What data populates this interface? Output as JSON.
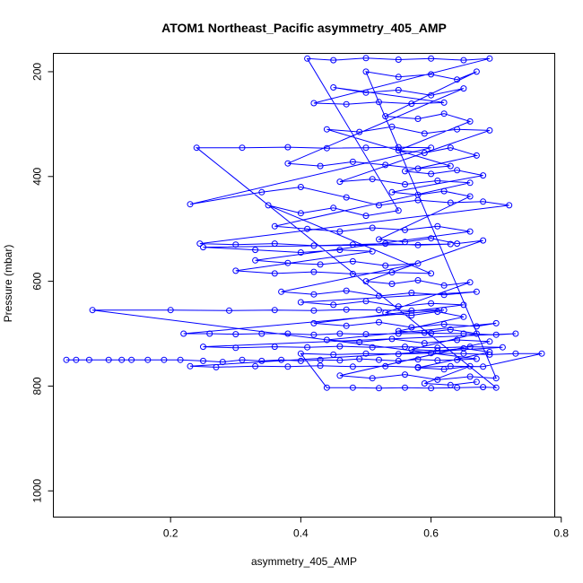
{
  "chart_data": {
    "type": "scatter",
    "title": "ATOM1 Northeast_Pacific asymmetry_405_AMP",
    "xlabel": "asymmetry_405_AMP",
    "ylabel": "Pressure (mbar)",
    "xlim": [
      0.02,
      0.79
    ],
    "ylim": [
      1050,
      165
    ],
    "xticks": [
      0.2,
      0.4,
      0.6,
      0.8
    ],
    "yticks": [
      200,
      400,
      600,
      800,
      1000
    ],
    "y_reversed": true,
    "grid": false,
    "legend": "none",
    "marker": "open-circle",
    "connected_by_lines": true,
    "color": "#0000ff",
    "series": [
      {
        "values_note": "",
        "points": [
          [
            0.04,
            750
          ],
          [
            0.055,
            750
          ],
          [
            0.075,
            750
          ],
          [
            0.105,
            750
          ],
          [
            0.125,
            750
          ],
          [
            0.14,
            750
          ],
          [
            0.165,
            750
          ],
          [
            0.19,
            750
          ],
          [
            0.215,
            750
          ],
          [
            0.25,
            752
          ],
          [
            0.28,
            754
          ],
          [
            0.31,
            750
          ],
          [
            0.34,
            752
          ],
          [
            0.37,
            750
          ],
          [
            0.4,
            752
          ],
          [
            0.43,
            750
          ],
          [
            0.46,
            751
          ],
          [
            0.49,
            748
          ],
          [
            0.52,
            750
          ],
          [
            0.55,
            752
          ],
          [
            0.58,
            749
          ],
          [
            0.61,
            751
          ],
          [
            0.64,
            750
          ],
          [
            0.67,
            748
          ],
          [
            0.08,
            655
          ],
          [
            0.2,
            655
          ],
          [
            0.29,
            656
          ],
          [
            0.36,
            655
          ],
          [
            0.42,
            656
          ],
          [
            0.47,
            654
          ],
          [
            0.52,
            655
          ],
          [
            0.57,
            656
          ],
          [
            0.62,
            655
          ],
          [
            0.22,
            700
          ],
          [
            0.26,
            700
          ],
          [
            0.3,
            701
          ],
          [
            0.34,
            700
          ],
          [
            0.38,
            700
          ],
          [
            0.42,
            702
          ],
          [
            0.46,
            700
          ],
          [
            0.5,
            701
          ],
          [
            0.55,
            700
          ],
          [
            0.6,
            699
          ],
          [
            0.65,
            700
          ],
          [
            0.7,
            702
          ],
          [
            0.73,
            700
          ],
          [
            0.25,
            725
          ],
          [
            0.3,
            727
          ],
          [
            0.36,
            725
          ],
          [
            0.41,
            726
          ],
          [
            0.46,
            724
          ],
          [
            0.51,
            726
          ],
          [
            0.56,
            725
          ],
          [
            0.61,
            727
          ],
          [
            0.66,
            725
          ],
          [
            0.71,
            726
          ],
          [
            0.23,
            762
          ],
          [
            0.27,
            764
          ],
          [
            0.33,
            762
          ],
          [
            0.38,
            763
          ],
          [
            0.43,
            761
          ],
          [
            0.48,
            763
          ],
          [
            0.53,
            762
          ],
          [
            0.58,
            764
          ],
          [
            0.63,
            762
          ],
          [
            0.68,
            763
          ],
          [
            0.77,
            738
          ],
          [
            0.73,
            738
          ],
          [
            0.69,
            740
          ],
          [
            0.65,
            738
          ],
          [
            0.6,
            737
          ],
          [
            0.55,
            739
          ],
          [
            0.5,
            738
          ],
          [
            0.45,
            740
          ],
          [
            0.4,
            738
          ],
          [
            0.44,
            803
          ],
          [
            0.48,
            803
          ],
          [
            0.52,
            804
          ],
          [
            0.56,
            803
          ],
          [
            0.6,
            804
          ],
          [
            0.64,
            803
          ],
          [
            0.68,
            802
          ],
          [
            0.7,
            803
          ],
          [
            0.24,
            345
          ],
          [
            0.31,
            345
          ],
          [
            0.38,
            344
          ],
          [
            0.44,
            346
          ],
          [
            0.5,
            345
          ],
          [
            0.55,
            344
          ],
          [
            0.6,
            345
          ],
          [
            0.23,
            453
          ],
          [
            0.34,
            430
          ],
          [
            0.4,
            420
          ],
          [
            0.47,
            440
          ],
          [
            0.52,
            455
          ],
          [
            0.58,
            445
          ],
          [
            0.63,
            450
          ],
          [
            0.68,
            448
          ],
          [
            0.72,
            455
          ],
          [
            0.245,
            528
          ],
          [
            0.3,
            530
          ],
          [
            0.36,
            528
          ],
          [
            0.42,
            532
          ],
          [
            0.48,
            530
          ],
          [
            0.53,
            528
          ],
          [
            0.58,
            531
          ],
          [
            0.63,
            529
          ],
          [
            0.25,
            535
          ],
          [
            0.33,
            540
          ],
          [
            0.4,
            545
          ],
          [
            0.46,
            540
          ],
          [
            0.51,
            543
          ],
          [
            0.3,
            580
          ],
          [
            0.36,
            585
          ],
          [
            0.42,
            582
          ],
          [
            0.48,
            586
          ],
          [
            0.54,
            583
          ],
          [
            0.6,
            585
          ],
          [
            0.35,
            455
          ],
          [
            0.4,
            470
          ],
          [
            0.45,
            460
          ],
          [
            0.5,
            475
          ],
          [
            0.55,
            465
          ],
          [
            0.41,
            175
          ],
          [
            0.45,
            178
          ],
          [
            0.5,
            174
          ],
          [
            0.55,
            177
          ],
          [
            0.6,
            175
          ],
          [
            0.65,
            178
          ],
          [
            0.69,
            175
          ],
          [
            0.42,
            260
          ],
          [
            0.47,
            262
          ],
          [
            0.52,
            258
          ],
          [
            0.57,
            261
          ],
          [
            0.62,
            259
          ],
          [
            0.45,
            230
          ],
          [
            0.5,
            240
          ],
          [
            0.55,
            235
          ],
          [
            0.6,
            245
          ],
          [
            0.65,
            232
          ],
          [
            0.38,
            375
          ],
          [
            0.43,
            380
          ],
          [
            0.48,
            372
          ],
          [
            0.53,
            378
          ],
          [
            0.58,
            385
          ],
          [
            0.63,
            380
          ],
          [
            0.44,
            310
          ],
          [
            0.49,
            315
          ],
          [
            0.54,
            305
          ],
          [
            0.59,
            318
          ],
          [
            0.64,
            310
          ],
          [
            0.69,
            312
          ],
          [
            0.46,
            410
          ],
          [
            0.51,
            405
          ],
          [
            0.56,
            415
          ],
          [
            0.61,
            408
          ],
          [
            0.66,
            412
          ],
          [
            0.36,
            495
          ],
          [
            0.41,
            500
          ],
          [
            0.46,
            505
          ],
          [
            0.51,
            498
          ],
          [
            0.56,
            502
          ],
          [
            0.61,
            495
          ],
          [
            0.66,
            505
          ],
          [
            0.33,
            560
          ],
          [
            0.38,
            565
          ],
          [
            0.43,
            568
          ],
          [
            0.48,
            562
          ],
          [
            0.53,
            570
          ],
          [
            0.58,
            566
          ],
          [
            0.37,
            620
          ],
          [
            0.42,
            625
          ],
          [
            0.47,
            618
          ],
          [
            0.52,
            628
          ],
          [
            0.57,
            622
          ],
          [
            0.62,
            626
          ],
          [
            0.67,
            620
          ],
          [
            0.4,
            640
          ],
          [
            0.45,
            645
          ],
          [
            0.5,
            638
          ],
          [
            0.55,
            648
          ],
          [
            0.6,
            642
          ],
          [
            0.65,
            645
          ],
          [
            0.42,
            680
          ],
          [
            0.47,
            685
          ],
          [
            0.52,
            678
          ],
          [
            0.57,
            688
          ],
          [
            0.62,
            682
          ],
          [
            0.67,
            686
          ],
          [
            0.7,
            680
          ],
          [
            0.44,
            712
          ],
          [
            0.49,
            716
          ],
          [
            0.54,
            710
          ],
          [
            0.59,
            718
          ],
          [
            0.64,
            712
          ],
          [
            0.69,
            715
          ],
          [
            0.46,
            780
          ],
          [
            0.51,
            785
          ],
          [
            0.56,
            778
          ],
          [
            0.61,
            788
          ],
          [
            0.66,
            782
          ],
          [
            0.7,
            785
          ],
          [
            0.5,
            200
          ],
          [
            0.55,
            210
          ],
          [
            0.6,
            205
          ],
          [
            0.64,
            215
          ],
          [
            0.67,
            200
          ],
          [
            0.53,
            285
          ],
          [
            0.58,
            290
          ],
          [
            0.62,
            280
          ],
          [
            0.66,
            295
          ],
          [
            0.55,
            350
          ],
          [
            0.59,
            355
          ],
          [
            0.63,
            345
          ],
          [
            0.67,
            360
          ],
          [
            0.56,
            390
          ],
          [
            0.6,
            395
          ],
          [
            0.64,
            388
          ],
          [
            0.68,
            398
          ],
          [
            0.54,
            430
          ],
          [
            0.58,
            435
          ],
          [
            0.62,
            428
          ],
          [
            0.66,
            438
          ],
          [
            0.52,
            520
          ],
          [
            0.56,
            525
          ],
          [
            0.6,
            518
          ],
          [
            0.64,
            528
          ],
          [
            0.68,
            522
          ],
          [
            0.5,
            600
          ],
          [
            0.54,
            605
          ],
          [
            0.58,
            598
          ],
          [
            0.62,
            608
          ],
          [
            0.66,
            602
          ],
          [
            0.53,
            660
          ],
          [
            0.57,
            665
          ],
          [
            0.61,
            658
          ],
          [
            0.65,
            668
          ],
          [
            0.55,
            695
          ],
          [
            0.59,
            698
          ],
          [
            0.63,
            692
          ],
          [
            0.67,
            700
          ],
          [
            0.57,
            730
          ],
          [
            0.61,
            733
          ],
          [
            0.65,
            728
          ],
          [
            0.69,
            735
          ],
          [
            0.58,
            765
          ],
          [
            0.62,
            768
          ],
          [
            0.66,
            762
          ],
          [
            0.59,
            795
          ],
          [
            0.63,
            798
          ],
          [
            0.67,
            792
          ]
        ]
      }
    ]
  }
}
